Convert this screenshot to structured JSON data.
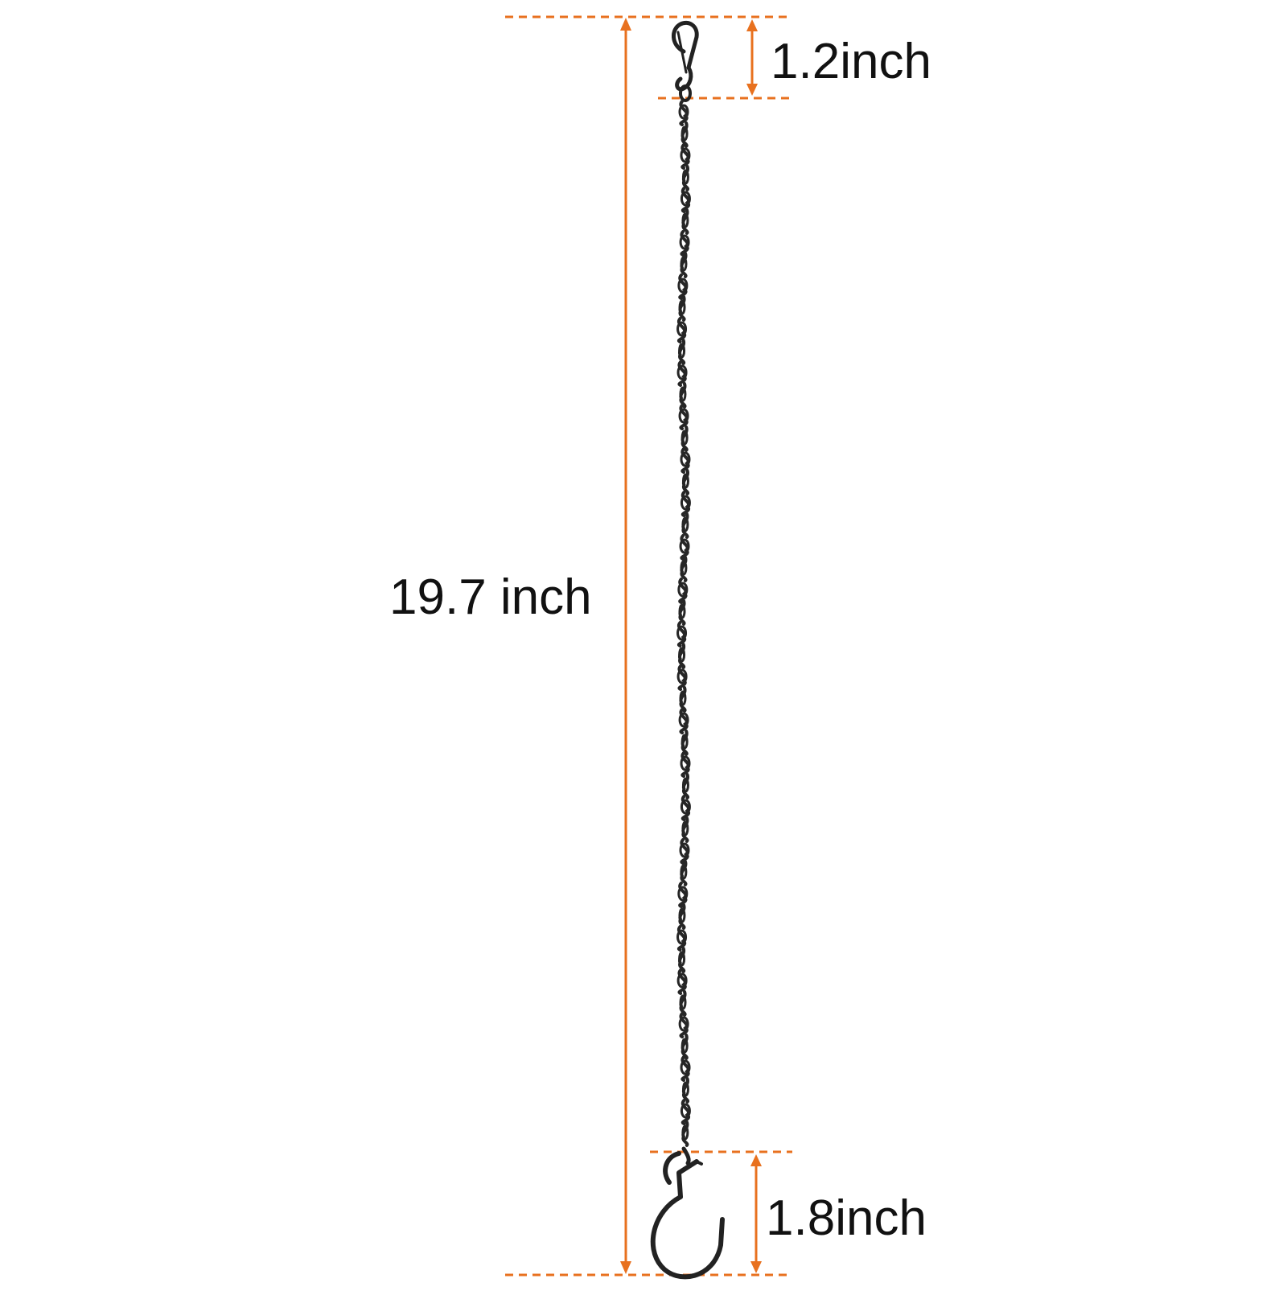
{
  "image": {
    "background": "#ffffff",
    "accent_color": "#e8711f",
    "object_color": "#222222"
  },
  "dimensions": {
    "total_length": "19.7 inch",
    "top_clip": "1.2inch",
    "bottom_hook": "1.8inch"
  },
  "icons": {
    "top_fitting": "snap-hook-icon",
    "bottom_fitting": "s-hook-icon",
    "body": "chain-icon"
  }
}
